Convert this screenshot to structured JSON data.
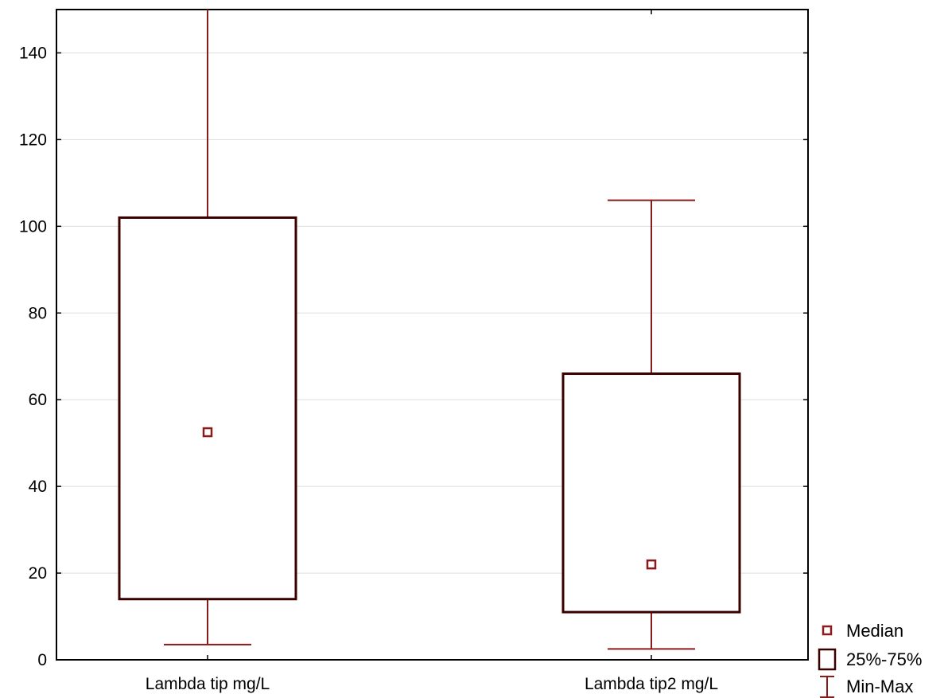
{
  "chart_data": {
    "type": "box",
    "categories": [
      "Lambda tip mg/L",
      "Lambda tip2 mg/L"
    ],
    "boxes": [
      {
        "name": "Lambda tip mg/L",
        "min": 3.5,
        "q1": 14,
        "median": 52.5,
        "q3": 102,
        "max": 150
      },
      {
        "name": "Lambda tip2 mg/L",
        "min": 2.5,
        "q1": 11,
        "median": 22,
        "q3": 66,
        "max": 106
      }
    ],
    "ylim": [
      0,
      150
    ],
    "yticks": [
      0,
      20,
      40,
      60,
      80,
      100,
      120,
      140
    ],
    "grid": true,
    "xlabel": "",
    "ylabel": "",
    "title": "",
    "legend": {
      "placement": "bottom-right",
      "items": [
        {
          "label": "Median",
          "marker": "median-square"
        },
        {
          "label": "25%-75%",
          "marker": "box"
        },
        {
          "label": "Min-Max",
          "marker": "whisker"
        }
      ]
    },
    "colors": {
      "whisker": "#8b1a1a",
      "box": "#3a0000",
      "median": "#8b1a1a",
      "grid": "#dddddd",
      "axis": "#000000"
    }
  }
}
